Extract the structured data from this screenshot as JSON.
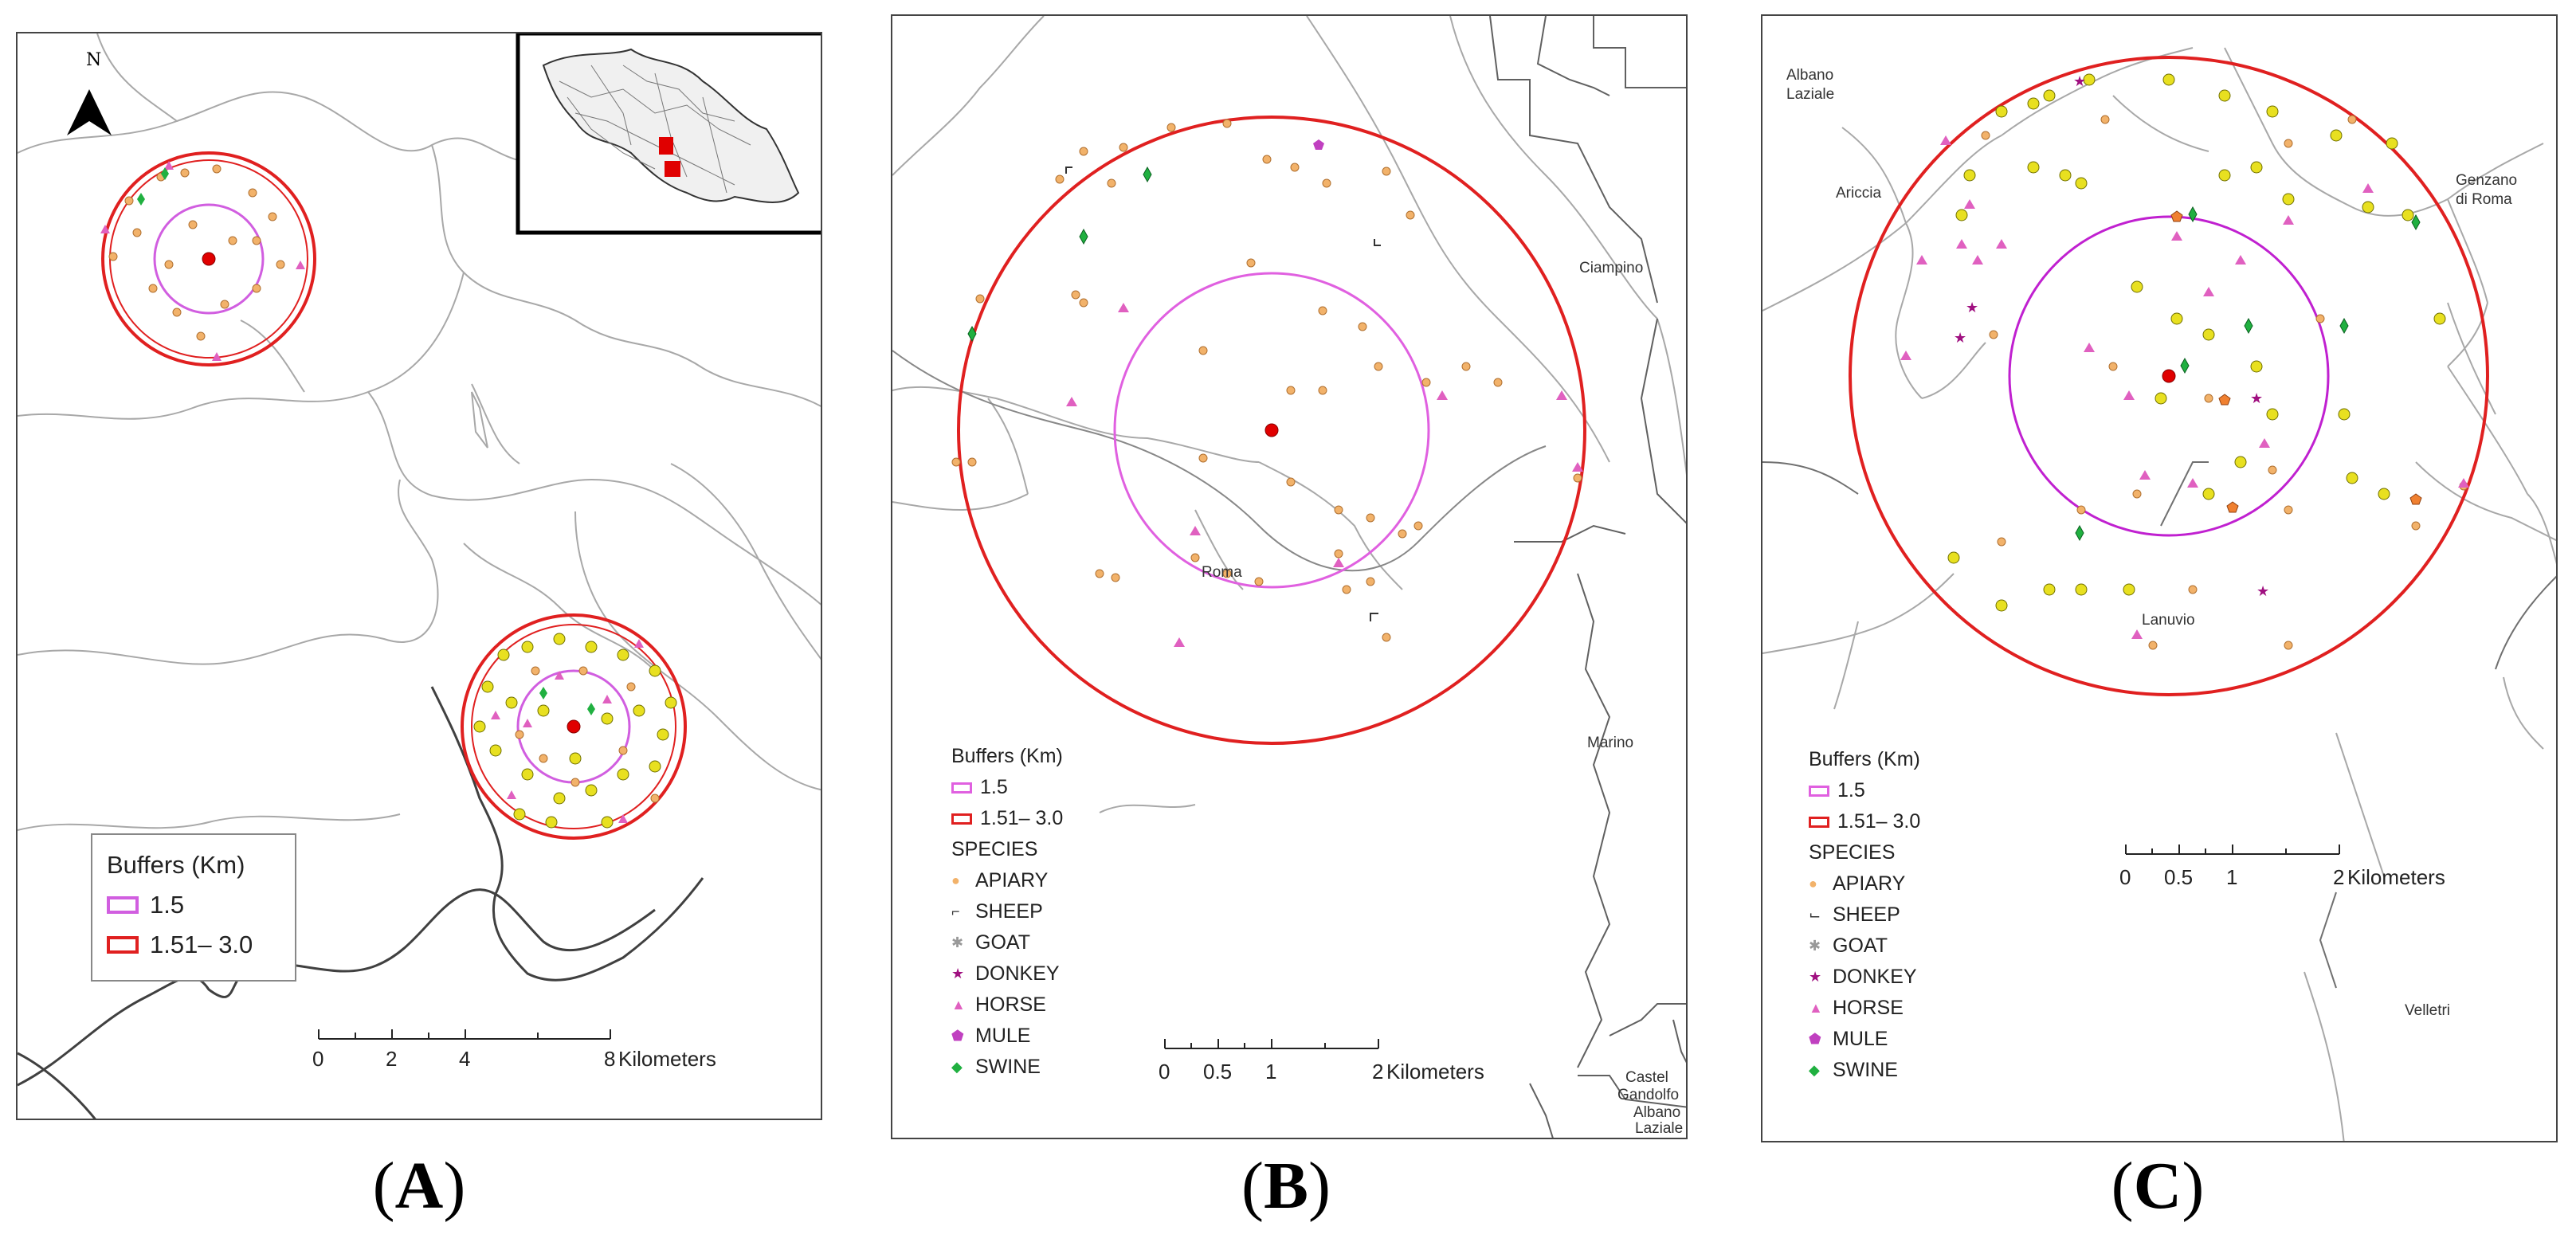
{
  "colors": {
    "buffer_inner": "#d15ee0",
    "buffer_outer": "#e02020",
    "center": "#e00000",
    "apiary": "#f2b26a",
    "apiary_yellow": "#e8e020",
    "horse": "#e060c0",
    "swine": "#20b040",
    "donkey": "#a01080",
    "mule": "#c040c0",
    "boundary": "#a8a8a8"
  },
  "panels": {
    "A": {
      "label_open": "(",
      "label_letter": "A",
      "label_close": ")",
      "north_label": "N",
      "north_icon": "north-arrow-icon",
      "legend": {
        "title": "Buffers (Km)",
        "inner": "1.5",
        "outer": "1.51– 3.0"
      },
      "scale": {
        "ticks": [
          "0",
          "2",
          "4",
          "8"
        ],
        "unit": "Kilometers"
      },
      "inset_icon": "lazio-region-inset-map"
    },
    "B": {
      "label_open": "(",
      "label_letter": "B",
      "label_close": ")",
      "places": [
        "Ciampino",
        "Roma",
        "Marino",
        "Castel",
        "Gandolfo",
        "Albano",
        "Laziale"
      ],
      "legend": {
        "title": "Buffers (Km)",
        "inner": "1.5",
        "outer": "1.51– 3.0",
        "species_title": "SPECIES",
        "species": [
          "APIARY",
          "SHEEP",
          "GOAT",
          "DONKEY",
          "HORSE",
          "MULE",
          "SWINE"
        ]
      },
      "scale": {
        "ticks": [
          "0",
          "0.5",
          "1",
          "2"
        ],
        "unit": "Kilometers"
      }
    },
    "C": {
      "label_open": "(",
      "label_letter": "C",
      "label_close": ")",
      "places": [
        "Albano",
        "Laziale",
        "Ariccia",
        "Genzano",
        "di Roma",
        "Lanuvio",
        "Velletri"
      ],
      "legend": {
        "title": "Buffers (Km)",
        "inner": "1.5",
        "outer": "1.51– 3.0",
        "species_title": "SPECIES",
        "species": [
          "APIARY",
          "SHEEP",
          "GOAT",
          "DONKEY",
          "HORSE",
          "MULE",
          "SWINE"
        ]
      },
      "scale": {
        "ticks": [
          "0",
          "0.5",
          "1",
          "2"
        ],
        "unit": "Kilometers"
      }
    }
  }
}
